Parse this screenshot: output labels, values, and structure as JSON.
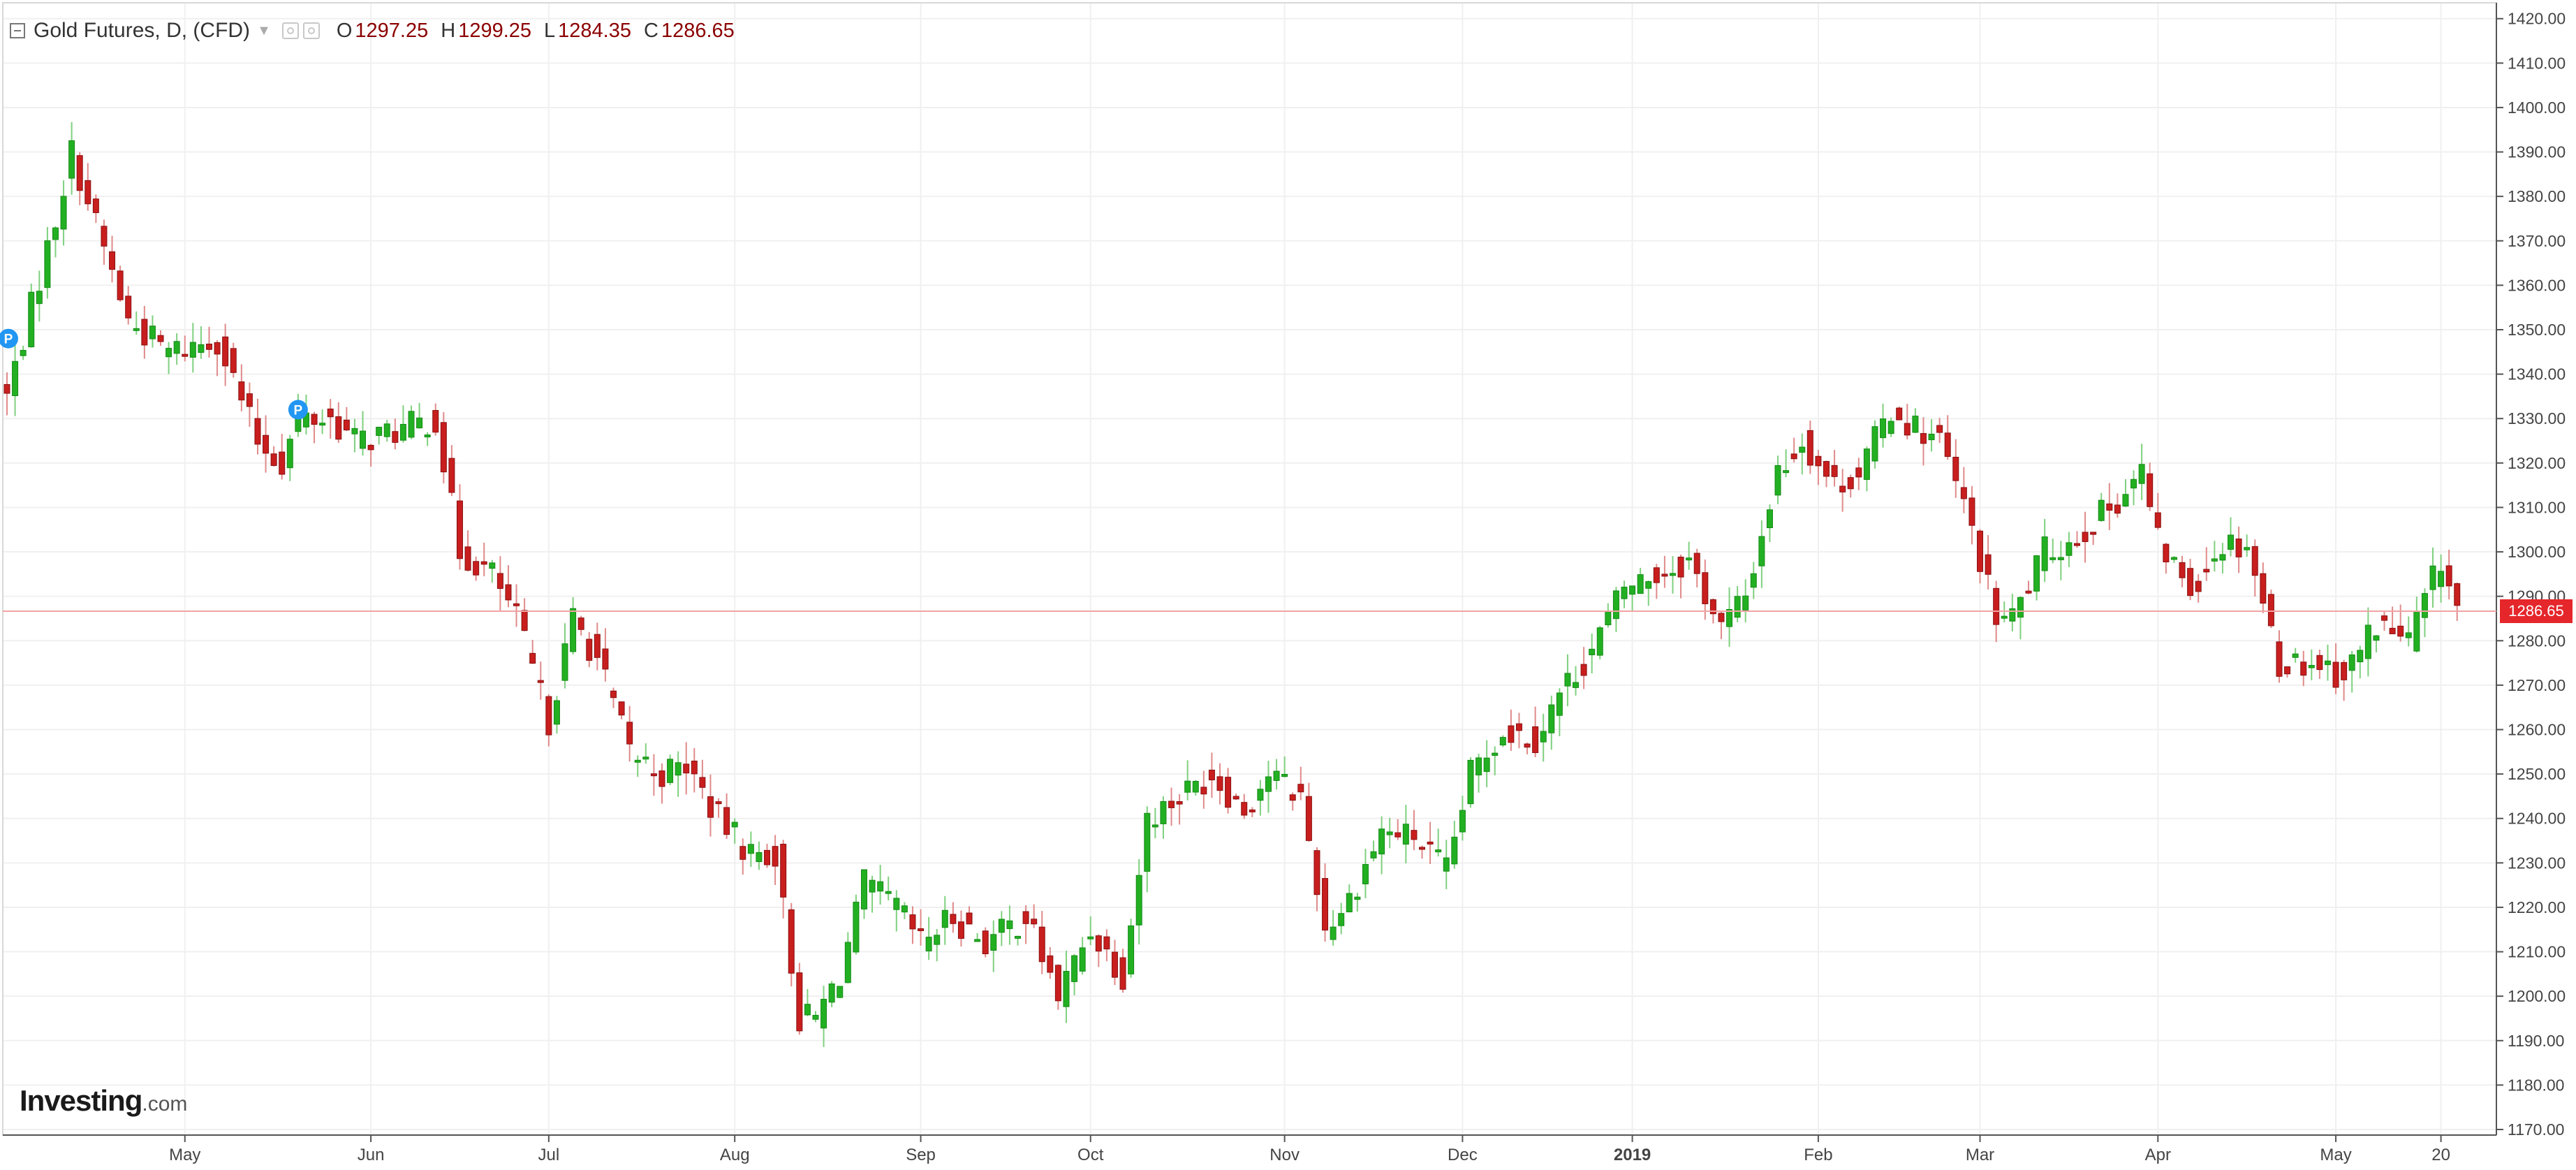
{
  "legend": {
    "title": "Gold Futures, D, (CFD)",
    "open_label": "O",
    "open": "1297.25",
    "high_label": "H",
    "high": "1299.25",
    "low_label": "L",
    "low": "1284.35",
    "close_label": "C",
    "close": "1286.65"
  },
  "last_price_tag": "1286.65",
  "event_marker_label": "P",
  "logo": {
    "name": "Investing",
    "suffix": ".com"
  },
  "colors": {
    "up": "#22b022",
    "down": "#c81e1e",
    "grid": "#f0f0f0",
    "axis": "#555555",
    "last_price": "#e5262b",
    "event_marker": "#2196f3"
  },
  "chart_data": {
    "type": "candlestick",
    "title": "Gold Futures, D, (CFD)",
    "ylim": [
      1170,
      1422
    ],
    "y_ticks": [
      "1170.00",
      "1180.00",
      "1190.00",
      "1200.00",
      "1210.00",
      "1220.00",
      "1230.00",
      "1240.00",
      "1250.00",
      "1260.00",
      "1270.00",
      "1280.00",
      "1290.00",
      "1300.00",
      "1310.00",
      "1320.00",
      "1330.00",
      "1340.00",
      "1350.00",
      "1360.00",
      "1370.00",
      "1380.00",
      "1390.00",
      "1400.00",
      "1410.00",
      "1420.00"
    ],
    "x_ticks": [
      {
        "label": "May",
        "index": 22
      },
      {
        "label": "Jun",
        "index": 45
      },
      {
        "label": "Jul",
        "index": 67
      },
      {
        "label": "Aug",
        "index": 90
      },
      {
        "label": "Sep",
        "index": 113
      },
      {
        "label": "Oct",
        "index": 134
      },
      {
        "label": "Nov",
        "index": 158
      },
      {
        "label": "Dec",
        "index": 180
      },
      {
        "label": "2019",
        "index": 201
      },
      {
        "label": "Feb",
        "index": 224
      },
      {
        "label": "Mar",
        "index": 244
      },
      {
        "label": "Apr",
        "index": 266
      },
      {
        "label": "May",
        "index": 288
      },
      {
        "label": "20",
        "index": 301
      }
    ],
    "grid": true,
    "last_price": 1286.65,
    "event_markers": [
      {
        "label": "P",
        "index": 0,
        "price": 1348
      },
      {
        "label": "P",
        "index": 36,
        "price": 1332
      }
    ],
    "waypoints": [
      [
        0,
        1335
      ],
      [
        6,
        1375
      ],
      [
        8,
        1390
      ],
      [
        15,
        1352
      ],
      [
        20,
        1345
      ],
      [
        26,
        1348
      ],
      [
        31,
        1325
      ],
      [
        34,
        1320
      ],
      [
        36,
        1330
      ],
      [
        40,
        1330
      ],
      [
        43,
        1325
      ],
      [
        48,
        1327
      ],
      [
        53,
        1330
      ],
      [
        56,
        1300
      ],
      [
        60,
        1295
      ],
      [
        63,
        1285
      ],
      [
        67,
        1262
      ],
      [
        70,
        1285
      ],
      [
        73,
        1276
      ],
      [
        77,
        1255
      ],
      [
        81,
        1250
      ],
      [
        84,
        1252
      ],
      [
        88,
        1240
      ],
      [
        92,
        1232
      ],
      [
        95,
        1232
      ],
      [
        98,
        1195
      ],
      [
        100,
        1195
      ],
      [
        103,
        1205
      ],
      [
        106,
        1225
      ],
      [
        110,
        1220
      ],
      [
        113,
        1212
      ],
      [
        117,
        1218
      ],
      [
        121,
        1212
      ],
      [
        126,
        1218
      ],
      [
        130,
        1200
      ],
      [
        134,
        1215
      ],
      [
        138,
        1205
      ],
      [
        141,
        1240
      ],
      [
        145,
        1245
      ],
      [
        149,
        1250
      ],
      [
        153,
        1242
      ],
      [
        156,
        1250
      ],
      [
        160,
        1245
      ],
      [
        163,
        1215
      ],
      [
        166,
        1222
      ],
      [
        170,
        1237
      ],
      [
        174,
        1236
      ],
      [
        178,
        1228
      ],
      [
        181,
        1250
      ],
      [
        185,
        1260
      ],
      [
        189,
        1258
      ],
      [
        192,
        1268
      ],
      [
        196,
        1278
      ],
      [
        200,
        1292
      ],
      [
        204,
        1295
      ],
      [
        208,
        1298
      ],
      [
        212,
        1283
      ],
      [
        215,
        1290
      ],
      [
        219,
        1318
      ],
      [
        222,
        1325
      ],
      [
        226,
        1315
      ],
      [
        229,
        1318
      ],
      [
        233,
        1332
      ],
      [
        236,
        1328
      ],
      [
        239,
        1325
      ],
      [
        243,
        1305
      ],
      [
        246,
        1285
      ],
      [
        248,
        1285
      ],
      [
        252,
        1300
      ],
      [
        255,
        1302
      ],
      [
        260,
        1310
      ],
      [
        264,
        1318
      ],
      [
        266,
        1302
      ],
      [
        270,
        1292
      ],
      [
        274,
        1302
      ],
      [
        277,
        1302
      ],
      [
        281,
        1275
      ],
      [
        286,
        1275
      ],
      [
        289,
        1272
      ],
      [
        293,
        1284
      ],
      [
        297,
        1280
      ],
      [
        301,
        1298
      ],
      [
        303,
        1287
      ]
    ]
  }
}
